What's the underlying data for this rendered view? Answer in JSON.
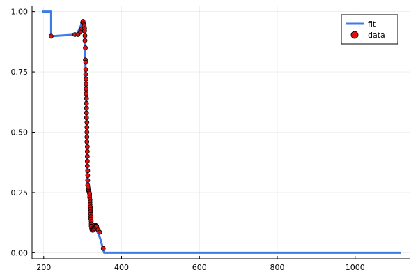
{
  "chart_data": {
    "type": "scatter",
    "title": "",
    "xlabel": "",
    "ylabel": "",
    "xlim": [
      170,
      1140
    ],
    "ylim": [
      -0.025,
      1.025
    ],
    "xticks": [
      200,
      400,
      600,
      800,
      1000
    ],
    "xtick_labels": [
      "200",
      "400",
      "600",
      "800",
      "1000"
    ],
    "yticks": [
      0.0,
      0.25,
      0.5,
      0.75,
      1.0
    ],
    "ytick_labels": [
      "0.00",
      "0.25",
      "0.50",
      "0.75",
      "1.00"
    ],
    "grid": true,
    "legend_position": "top-right",
    "legend": [
      {
        "label": "fit",
        "kind": "line",
        "color": "#3D7BE6"
      },
      {
        "label": "data",
        "kind": "marker",
        "color": "#E01010"
      }
    ],
    "series": [
      {
        "name": "fit",
        "kind": "line",
        "color": "#3D7BE6",
        "points": [
          [
            195,
            1.0
          ],
          [
            219,
            1.0
          ],
          [
            219,
            0.898
          ],
          [
            285,
            0.905
          ],
          [
            300,
            0.958
          ],
          [
            301,
            0.95
          ],
          [
            304,
            0.94
          ],
          [
            306,
            0.88
          ],
          [
            308,
            0.72
          ],
          [
            310,
            0.52
          ],
          [
            312,
            0.36
          ],
          [
            313,
            0.3
          ],
          [
            314,
            0.27
          ],
          [
            316,
            0.24
          ],
          [
            318,
            0.22
          ],
          [
            320,
            0.17
          ],
          [
            322,
            0.12
          ],
          [
            324,
            0.1
          ],
          [
            330,
            0.095
          ],
          [
            336,
            0.094
          ],
          [
            345,
            0.06
          ],
          [
            355,
            0.0
          ],
          [
            1118,
            0.0
          ]
        ]
      },
      {
        "name": "data",
        "kind": "scatter",
        "color": "#E01010",
        "points": [
          [
            219,
            0.898
          ],
          [
            280,
            0.905
          ],
          [
            288,
            0.905
          ],
          [
            294,
            0.915
          ],
          [
            298,
            0.93
          ],
          [
            300,
            0.955
          ],
          [
            301,
            0.96
          ],
          [
            302,
            0.95
          ],
          [
            303,
            0.945
          ],
          [
            304,
            0.94
          ],
          [
            305,
            0.93
          ],
          [
            305,
            0.92
          ],
          [
            306,
            0.9
          ],
          [
            306,
            0.88
          ],
          [
            307,
            0.85
          ],
          [
            307,
            0.8
          ],
          [
            308,
            0.79
          ],
          [
            308,
            0.76
          ],
          [
            308,
            0.74
          ],
          [
            309,
            0.72
          ],
          [
            309,
            0.7
          ],
          [
            309,
            0.68
          ],
          [
            309,
            0.66
          ],
          [
            310,
            0.64
          ],
          [
            310,
            0.62
          ],
          [
            310,
            0.6
          ],
          [
            310,
            0.58
          ],
          [
            310,
            0.56
          ],
          [
            311,
            0.54
          ],
          [
            311,
            0.52
          ],
          [
            311,
            0.5
          ],
          [
            311,
            0.48
          ],
          [
            311,
            0.46
          ],
          [
            312,
            0.44
          ],
          [
            312,
            0.42
          ],
          [
            312,
            0.4
          ],
          [
            312,
            0.38
          ],
          [
            312,
            0.36
          ],
          [
            313,
            0.34
          ],
          [
            313,
            0.32
          ],
          [
            313,
            0.3
          ],
          [
            313,
            0.28
          ],
          [
            314,
            0.27
          ],
          [
            315,
            0.26
          ],
          [
            316,
            0.255
          ],
          [
            317,
            0.25
          ],
          [
            318,
            0.245
          ],
          [
            318,
            0.24
          ],
          [
            318,
            0.23
          ],
          [
            319,
            0.22
          ],
          [
            319,
            0.21
          ],
          [
            319,
            0.2
          ],
          [
            320,
            0.19
          ],
          [
            320,
            0.18
          ],
          [
            320,
            0.17
          ],
          [
            321,
            0.16
          ],
          [
            321,
            0.15
          ],
          [
            321,
            0.14
          ],
          [
            322,
            0.13
          ],
          [
            322,
            0.12
          ],
          [
            322,
            0.11
          ],
          [
            323,
            0.1
          ],
          [
            324,
            0.095
          ],
          [
            326,
            0.093
          ],
          [
            328,
            0.095
          ],
          [
            330,
            0.1
          ],
          [
            331,
            0.11
          ],
          [
            332,
            0.115
          ],
          [
            334,
            0.113
          ],
          [
            336,
            0.11
          ],
          [
            340,
            0.095
          ],
          [
            344,
            0.085
          ],
          [
            353,
            0.018
          ]
        ]
      }
    ]
  }
}
